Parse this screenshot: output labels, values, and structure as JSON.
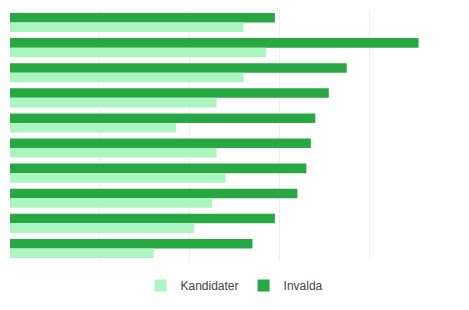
{
  "chart_data": {
    "type": "bar",
    "orientation": "horizontal",
    "categories": [
      null,
      null,
      null,
      null,
      null,
      null,
      null,
      null,
      null,
      null
    ],
    "series": [
      {
        "name": "Kandidater",
        "color": "#adf5c0",
        "values": [
          26000,
          28500,
          26000,
          23000,
          18500,
          23000,
          24000,
          22500,
          20500,
          16000
        ]
      },
      {
        "name": "Invalda",
        "color": "#27a842",
        "values": [
          29500,
          45500,
          37500,
          35500,
          34000,
          33500,
          33000,
          32000,
          29500,
          27000
        ]
      }
    ],
    "xlim": [
      0,
      50000
    ],
    "xticks": [
      0,
      10000,
      20000,
      30000,
      40000,
      50000
    ],
    "grid": true,
    "legend": "bottom",
    "tick_labels": false
  }
}
